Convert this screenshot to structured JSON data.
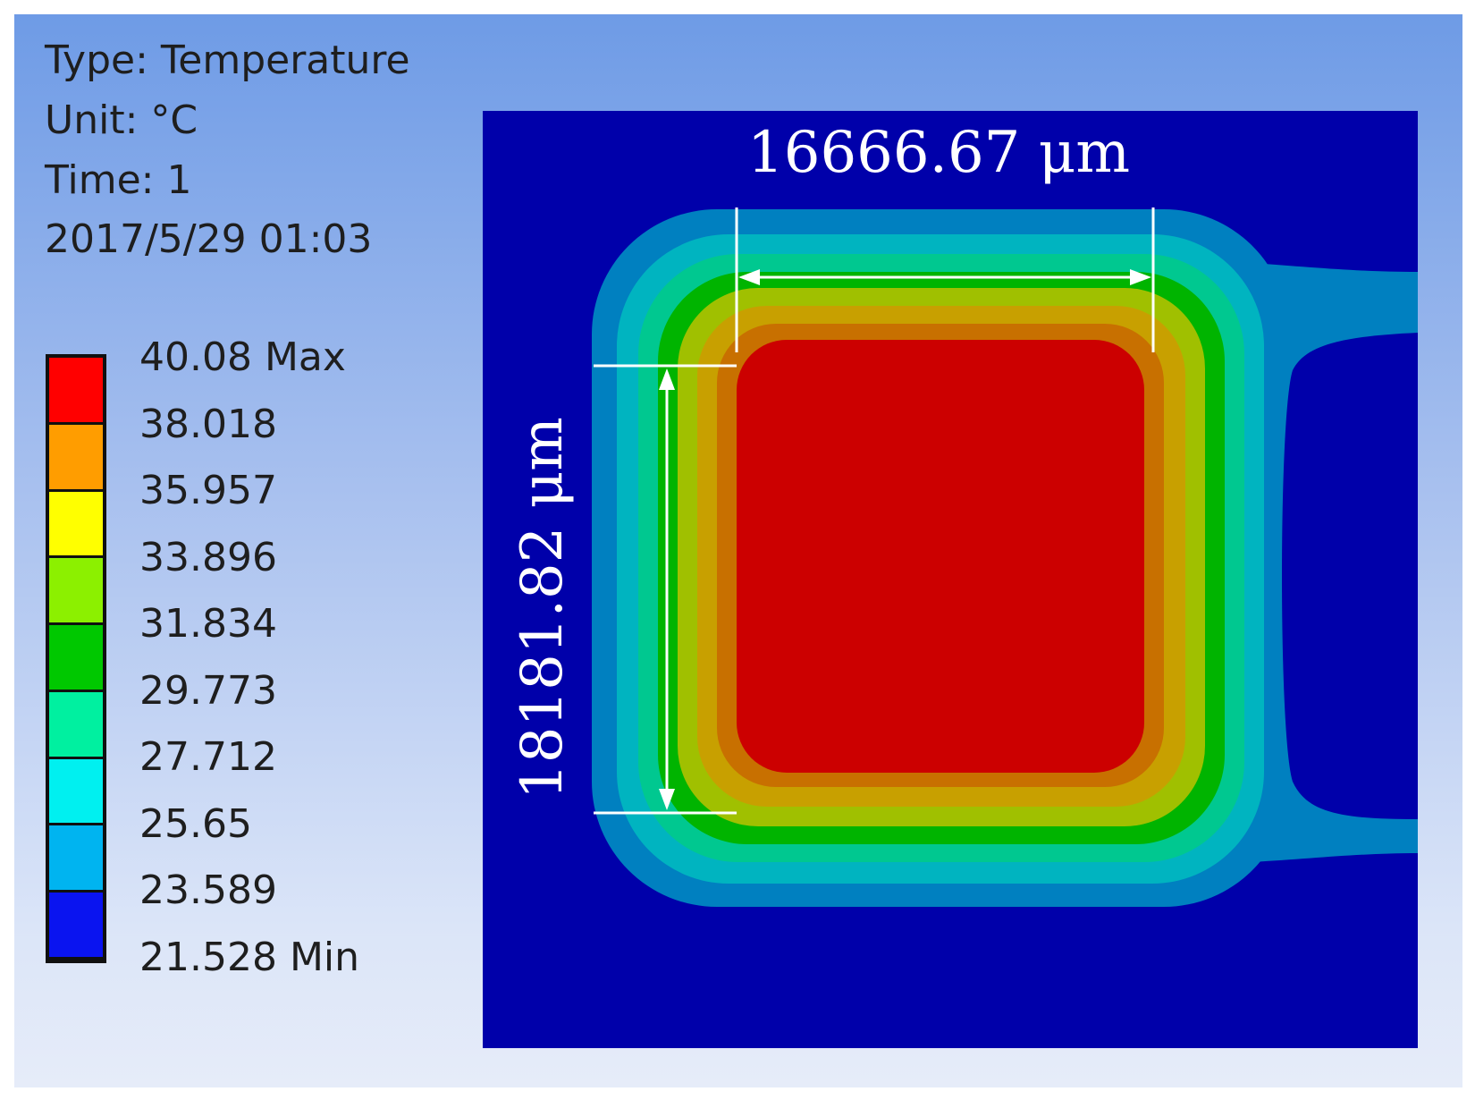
{
  "header": {
    "type_line": "Type: Temperature",
    "unit_line": "Unit: °C",
    "time_line": "Time: 1",
    "date_line": "2017/5/29 01:03"
  },
  "legend": {
    "labels": [
      "40.08 Max",
      "38.018",
      "35.957",
      "33.896",
      "31.834",
      "29.773",
      "27.712",
      "25.65",
      "23.589",
      "21.528 Min"
    ],
    "colors": [
      "#ff0000",
      "#ff9d00",
      "#ffff00",
      "#8cf000",
      "#00c800",
      "#00f0a0",
      "#00f0f0",
      "#00b4f0",
      "#0a14f0"
    ]
  },
  "plot": {
    "background_color": "#0000aa",
    "contour_colors": [
      "#0080c0",
      "#00b4c0",
      "#00c890",
      "#00b400",
      "#a0c000",
      "#c8a000",
      "#c87000",
      "#cc0000"
    ]
  },
  "dimensions": {
    "width_label": "16666.67 μm",
    "height_label": "18181.82 μm"
  }
}
